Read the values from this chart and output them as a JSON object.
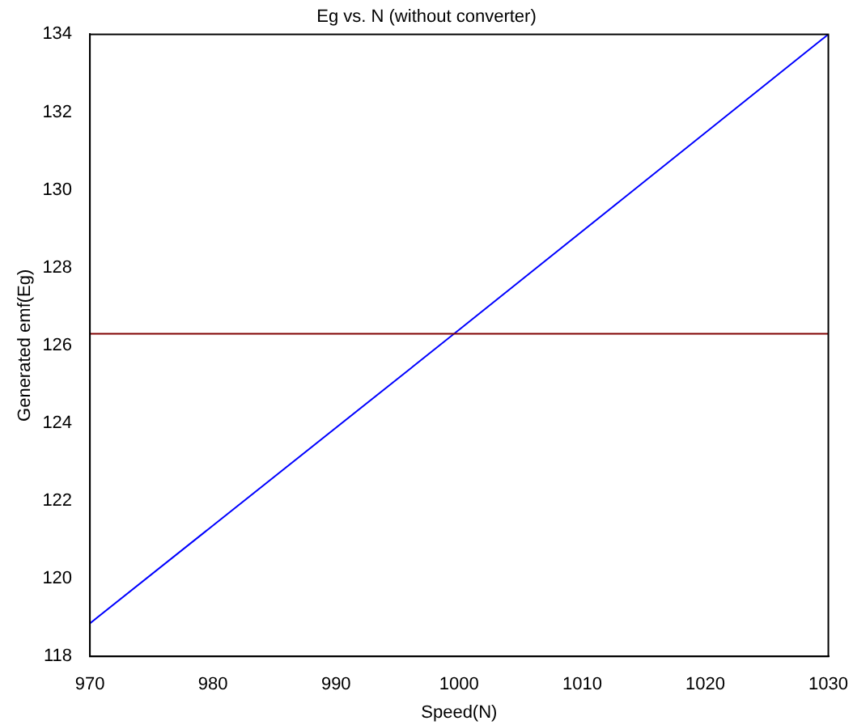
{
  "chart_data": {
    "type": "line",
    "title": "Eg vs. N (without converter)",
    "xlabel": "Speed(N)",
    "ylabel": "Generated emf(Eg)",
    "x": [
      970,
      1000,
      1030
    ],
    "series": [
      {
        "color": "#0000ff",
        "values": [
          118.85,
          126.4,
          134
        ]
      }
    ],
    "ref_lines": [
      {
        "axis": "y",
        "value": 126.3,
        "color": "#800000"
      }
    ],
    "xlim": [
      970,
      1030
    ],
    "xticks": [
      970,
      980,
      990,
      1000,
      1010,
      1020,
      1030
    ],
    "ylim": [
      118,
      134
    ],
    "yticks": [
      118,
      120,
      122,
      124,
      126,
      128,
      130,
      132,
      134
    ],
    "grid": false,
    "legend": false,
    "marker": "none",
    "line_style": "solid"
  }
}
